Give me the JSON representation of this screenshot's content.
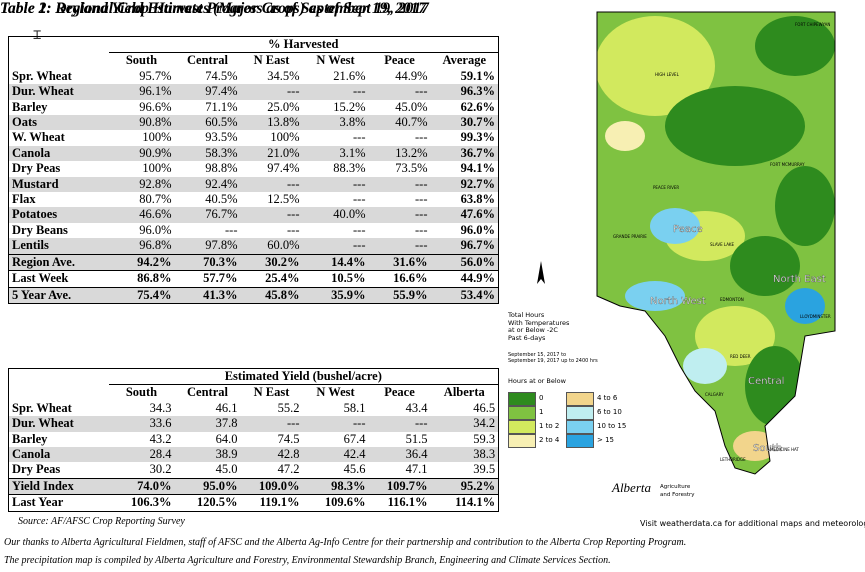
{
  "table1": {
    "title": "Table 1: Regional Crop Harvest Progress as of September 19, 2017",
    "superheader": "% Harvested",
    "columns": [
      "South",
      "Central",
      "N East",
      "N West",
      "Peace",
      "Average"
    ],
    "rows": [
      {
        "crop": "Spr. Wheat",
        "values": [
          "95.7%",
          "74.5%",
          "34.5%",
          "21.6%",
          "44.9%",
          "59.1%"
        ]
      },
      {
        "crop": "Dur. Wheat",
        "values": [
          "96.1%",
          "97.4%",
          "---",
          "---",
          "---",
          "96.3%"
        ]
      },
      {
        "crop": "Barley",
        "values": [
          "96.6%",
          "71.1%",
          "25.0%",
          "15.2%",
          "45.0%",
          "62.6%"
        ]
      },
      {
        "crop": "Oats",
        "values": [
          "90.8%",
          "60.5%",
          "13.8%",
          "3.8%",
          "40.7%",
          "30.7%"
        ]
      },
      {
        "crop": "W. Wheat",
        "values": [
          "100%",
          "93.5%",
          "100%",
          "---",
          "---",
          "99.3%"
        ]
      },
      {
        "crop": "Canola",
        "values": [
          "90.9%",
          "58.3%",
          "21.0%",
          "3.1%",
          "13.2%",
          "36.7%"
        ]
      },
      {
        "crop": "Dry Peas",
        "values": [
          "100%",
          "98.8%",
          "97.4%",
          "88.3%",
          "73.5%",
          "94.1%"
        ]
      },
      {
        "crop": "Mustard",
        "values": [
          "92.8%",
          "92.4%",
          "---",
          "---",
          "---",
          "92.7%"
        ]
      },
      {
        "crop": "Flax",
        "values": [
          "80.7%",
          "40.5%",
          "12.5%",
          "---",
          "---",
          "63.8%"
        ]
      },
      {
        "crop": "Potatoes",
        "values": [
          "46.6%",
          "76.7%",
          "---",
          "40.0%",
          "---",
          "47.6%"
        ]
      },
      {
        "crop": "Dry Beans",
        "values": [
          "96.0%",
          "---",
          "---",
          "---",
          "---",
          "96.0%"
        ]
      },
      {
        "crop": "Lentils",
        "values": [
          "96.8%",
          "97.8%",
          "60.0%",
          "---",
          "---",
          "96.7%"
        ]
      }
    ],
    "summary": [
      {
        "label": "Region Ave.",
        "values": [
          "94.2%",
          "70.3%",
          "30.2%",
          "14.4%",
          "31.6%",
          "56.0%"
        ]
      },
      {
        "label": "Last Week",
        "values": [
          "86.8%",
          "57.7%",
          "25.4%",
          "10.5%",
          "16.6%",
          "44.9%"
        ]
      },
      {
        "label": "5 Year Ave.",
        "values": [
          "75.4%",
          "41.3%",
          "45.8%",
          "35.9%",
          "55.9%",
          "53.4%"
        ]
      }
    ]
  },
  "table2": {
    "title": "Table 2: Dryland Yield Estimates (Major Crops) as of Sept 19, 2017",
    "superheader": "Estimated Yield (bushel/acre)",
    "columns": [
      "South",
      "Central",
      "N East",
      "N West",
      "Peace",
      "Alberta"
    ],
    "rows": [
      {
        "crop": "Spr. Wheat",
        "values": [
          "34.3",
          "46.1",
          "55.2",
          "58.1",
          "43.4",
          "46.5"
        ]
      },
      {
        "crop": "Dur. Wheat",
        "values": [
          "33.6",
          "37.8",
          "---",
          "---",
          "---",
          "34.2"
        ]
      },
      {
        "crop": "Barley",
        "values": [
          "43.2",
          "64.0",
          "74.5",
          "67.4",
          "51.5",
          "59.3"
        ]
      },
      {
        "crop": "Canola",
        "values": [
          "28.4",
          "38.9",
          "42.8",
          "42.4",
          "36.4",
          "38.3"
        ]
      },
      {
        "crop": "Dry Peas",
        "values": [
          "30.2",
          "45.0",
          "47.2",
          "45.6",
          "47.1",
          "39.5"
        ]
      }
    ],
    "summary": [
      {
        "label": "Yield Index",
        "values": [
          "74.0%",
          "95.0%",
          "109.0%",
          "98.3%",
          "109.7%",
          "95.2%"
        ]
      },
      {
        "label": "Last Year",
        "values": [
          "106.3%",
          "120.5%",
          "119.1%",
          "109.6%",
          "116.1%",
          "114.1%"
        ]
      }
    ]
  },
  "source": "Source: AF/AFSC Crop Reporting Survey",
  "notes": [
    "Our thanks to Alberta Agricultural Fieldmen, staff of AFSC and the Alberta Ag-Info Centre for their partnership and contribution to the Alberta Crop Reporting Program.",
    "The precipitation map is compiled by Alberta Agriculture and Forestry, Environmental Stewardship Branch, Engineering and Climate Services Section."
  ],
  "map": {
    "regions": [
      "Peace",
      "North West",
      "North East",
      "Central",
      "South"
    ],
    "cities": [
      "FORT CHIPEWYAN",
      "FORT MCMURRAY",
      "HIGH LEVEL",
      "PEACE RIVER",
      "SLAVE LAKE",
      "GRANDE PRAIRIE",
      "EDMONTON",
      "LLOYDMINSTER",
      "RED DEER",
      "CALGARY",
      "LETHBRIDGE",
      "MEDICINE HAT"
    ],
    "side_title": [
      "Total Hours",
      "With Temperatures",
      "at or Below -2C",
      "Past 6-days"
    ],
    "side_dates": [
      "September 15, 2017 to",
      "September 19, 2017 up to 2400 hrs"
    ],
    "legend_title": "Hours at or Below",
    "legend": [
      {
        "label": "0",
        "color": "#2e8b1e"
      },
      {
        "label": "4 to 6",
        "color": "#f2d58c"
      },
      {
        "label": "1",
        "color": "#7fc241"
      },
      {
        "label": "6 to 10",
        "color": "#bfeef0"
      },
      {
        "label": "1 to 2",
        "color": "#d2e95e"
      },
      {
        "label": "10 to 15",
        "color": "#7ad0f0"
      },
      {
        "label": "2 to 4",
        "color": "#f7efb3"
      },
      {
        "label": "> 15",
        "color": "#2aa3e0"
      }
    ],
    "agency_logo": "Alberta",
    "agency_sub": "Agriculture and Forestry",
    "visit": "Visit weatherdata.ca for additional maps and meteorological data"
  }
}
